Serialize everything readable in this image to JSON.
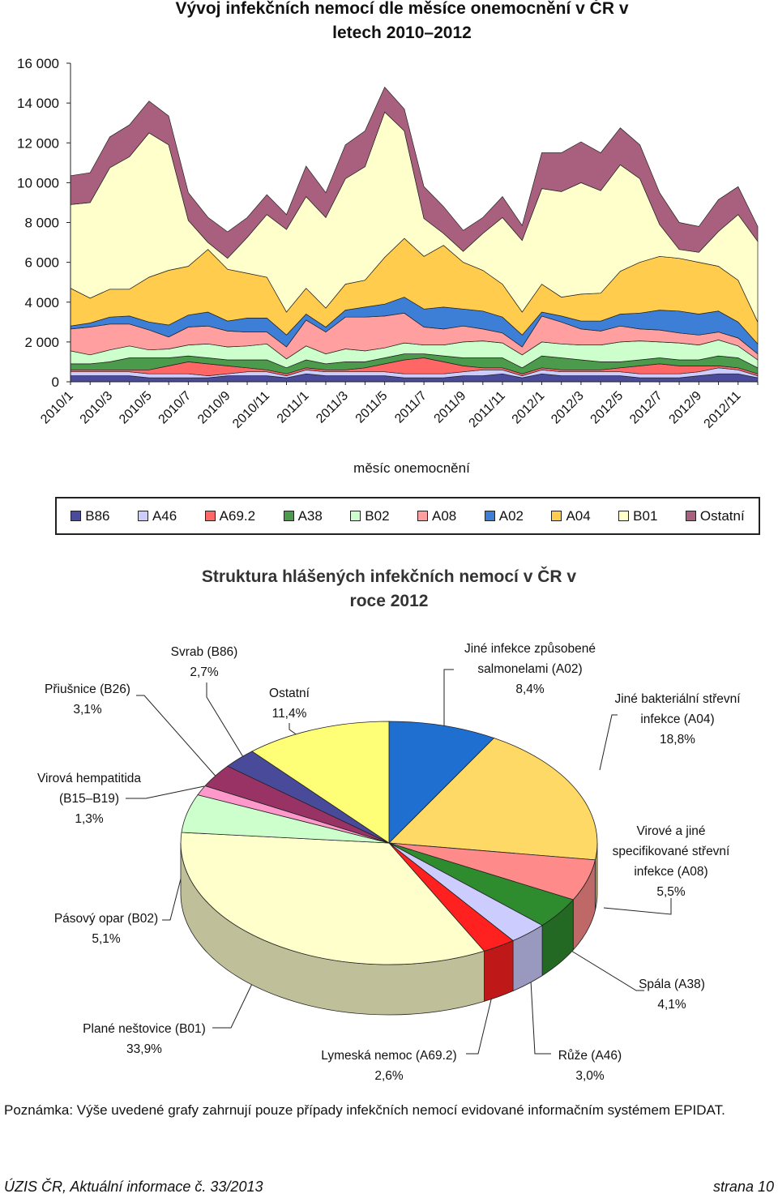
{
  "chart_data": [
    {
      "type": "stacked-area",
      "title": "Vývoj infekčních nemocí dle měsíce onemocnění v ČR v letech 2010–2012",
      "x_label": "měsíc onemocnění",
      "categories": [
        "2010/1",
        null,
        "2010/3",
        null,
        "2010/5",
        null,
        "2010/7",
        null,
        "2010/9",
        null,
        "2010/11",
        null,
        "2011/1",
        null,
        "2011/3",
        null,
        "2011/5",
        null,
        "2011/7",
        null,
        "2011/9",
        null,
        "2011/11",
        null,
        "2012/1",
        null,
        "2012/3",
        null,
        "2012/5",
        null,
        "2012/7",
        null,
        "2012/9",
        null,
        "2012/11",
        null
      ],
      "ylim": [
        0,
        16000
      ],
      "yticks": [
        0,
        {
          "value": 2000,
          "label": "2 000"
        },
        {
          "value": 4000,
          "label": "4 000"
        },
        {
          "value": 6000,
          "label": "6 000"
        },
        {
          "value": 8000,
          "label": "8 000"
        },
        {
          "value": 10000,
          "label": "10 000"
        },
        {
          "value": 12000,
          "label": "12 000"
        },
        {
          "value": 14000,
          "label": "14 000"
        },
        {
          "value": 16000,
          "label": "16 000"
        }
      ],
      "grid": false,
      "legend": "bottom",
      "series": [
        {
          "name": "B86",
          "color": "#4b4b9b",
          "values": [
            300,
            300,
            300,
            300,
            200,
            200,
            200,
            200,
            300,
            300,
            300,
            200,
            400,
            300,
            300,
            300,
            300,
            200,
            200,
            200,
            300,
            300,
            400,
            200,
            400,
            300,
            300,
            300,
            300,
            200,
            200,
            200,
            300,
            400,
            400,
            200
          ]
        },
        {
          "name": "A46",
          "color": "#ccccff",
          "values": [
            200,
            200,
            200,
            200,
            200,
            200,
            200,
            100,
            100,
            200,
            200,
            100,
            200,
            200,
            200,
            200,
            200,
            200,
            200,
            200,
            200,
            300,
            200,
            100,
            200,
            200,
            200,
            200,
            200,
            200,
            200,
            200,
            200,
            300,
            200,
            100
          ]
        },
        {
          "name": "A69.2",
          "color": "#ff6666",
          "values": [
            100,
            100,
            100,
            100,
            200,
            400,
            600,
            600,
            400,
            200,
            100,
            100,
            100,
            100,
            100,
            200,
            400,
            700,
            800,
            600,
            300,
            100,
            100,
            100,
            100,
            100,
            100,
            100,
            200,
            400,
            500,
            400,
            300,
            100,
            100,
            100
          ]
        },
        {
          "name": "A38",
          "color": "#4c9a4c",
          "values": [
            300,
            300,
            400,
            600,
            600,
            400,
            300,
            300,
            300,
            400,
            500,
            300,
            400,
            300,
            400,
            300,
            300,
            300,
            200,
            300,
            400,
            500,
            500,
            300,
            600,
            600,
            500,
            400,
            300,
            300,
            300,
            300,
            300,
            500,
            500,
            300
          ]
        },
        {
          "name": "B02",
          "color": "#ccffcc",
          "values": [
            650,
            450,
            600,
            600,
            400,
            450,
            550,
            700,
            650,
            700,
            800,
            450,
            700,
            500,
            650,
            550,
            500,
            550,
            450,
            550,
            800,
            850,
            750,
            650,
            700,
            700,
            750,
            850,
            1000,
            950,
            800,
            850,
            750,
            800,
            600,
            400
          ]
        },
        {
          "name": "A08",
          "color": "#ff9f9f",
          "values": [
            1100,
            1400,
            1300,
            1100,
            1000,
            600,
            900,
            900,
            800,
            700,
            600,
            600,
            1300,
            1100,
            1600,
            1700,
            1600,
            1500,
            900,
            800,
            800,
            600,
            500,
            400,
            1300,
            1100,
            800,
            700,
            800,
            600,
            600,
            500,
            500,
            400,
            400,
            300
          ]
        },
        {
          "name": "A02",
          "color": "#3d7fd6",
          "values": [
            150,
            200,
            350,
            400,
            400,
            600,
            600,
            700,
            500,
            700,
            700,
            600,
            300,
            250,
            350,
            500,
            600,
            800,
            900,
            1100,
            850,
            900,
            800,
            600,
            200,
            300,
            400,
            500,
            600,
            800,
            1000,
            1100,
            1050,
            1050,
            800,
            500
          ]
        },
        {
          "name": "A04",
          "color": "#ffcc4d",
          "values": [
            1900,
            1250,
            1400,
            1350,
            2250,
            2750,
            2450,
            3150,
            2600,
            2250,
            2050,
            1150,
            1300,
            950,
            1300,
            1350,
            2350,
            2950,
            2650,
            3100,
            2350,
            2050,
            1650,
            1150,
            1400,
            950,
            1350,
            1400,
            2150,
            2550,
            2700,
            2650,
            2600,
            2250,
            2100,
            1100
          ]
        },
        {
          "name": "B01",
          "color": "#ffffcc",
          "values": [
            4200,
            4800,
            6100,
            6650,
            7250,
            6300,
            2300,
            350,
            550,
            1800,
            3150,
            4150,
            4600,
            4550,
            5300,
            5700,
            7300,
            5400,
            1900,
            600,
            550,
            1850,
            3350,
            3600,
            4800,
            5300,
            5600,
            5150,
            5350,
            4200,
            1600,
            450,
            500,
            1750,
            3300,
            4050
          ]
        },
        {
          "name": "Ostatní",
          "color": "#a8607e",
          "values": [
            1450,
            1500,
            1550,
            1600,
            1600,
            1450,
            1400,
            1260,
            1330,
            1000,
            1000,
            750,
            1530,
            1250,
            1700,
            1800,
            1250,
            1100,
            1600,
            1350,
            1050,
            800,
            1050,
            750,
            1800,
            1950,
            2050,
            1900,
            1850,
            1700,
            1600,
            1350,
            1300,
            1600,
            1400,
            750
          ]
        }
      ]
    },
    {
      "type": "pie3d",
      "title": "Struktura hlášených infekčních nemocí v ČR v roce 2012",
      "categories": [
        "Jiné infekce způsobené salmonelami (A02)",
        "Jiné bakteriální střevní infekce (A04)",
        "Virové a jiné specifikované střevní infekce (A08)",
        "Spála (A38)",
        "Růže (A46)",
        "Lymeská nemoc (A69.2)",
        "Plané neštovice (B01)",
        "Pásový opar (B02)",
        "Virová hempatitida (B15–B19)",
        "Přiušnice (B26)",
        "Svrab (B86)",
        "Ostatní"
      ],
      "values": [
        8.4,
        18.8,
        5.5,
        4.1,
        3.0,
        2.6,
        33.9,
        5.1,
        1.3,
        3.1,
        2.7,
        11.4
      ],
      "value_labels": [
        "8,4%",
        "18,8%",
        "5,5%",
        "4,1%",
        "3,0%",
        "2,6%",
        "33,9%",
        "5,1%",
        "1,3%",
        "3,1%",
        "2,7%",
        "11,4%"
      ],
      "colors": [
        "#1f6fd0",
        "#ffd966",
        "#ff8a8a",
        "#2e8b2e",
        "#ccccff",
        "#ff2020",
        "#ffffcc",
        "#ccffcc",
        "#ff99cc",
        "#993366",
        "#4a4a9a",
        "#ffff77"
      ]
    }
  ],
  "note": "Poznámka: Výše uvedené grafy zahrnují pouze případy infekčních nemocí evidované informačním systémem EPIDAT.",
  "footer": {
    "left": "ÚZIS ČR, Aktuální informace č. 33/2013",
    "right": "strana 10"
  }
}
